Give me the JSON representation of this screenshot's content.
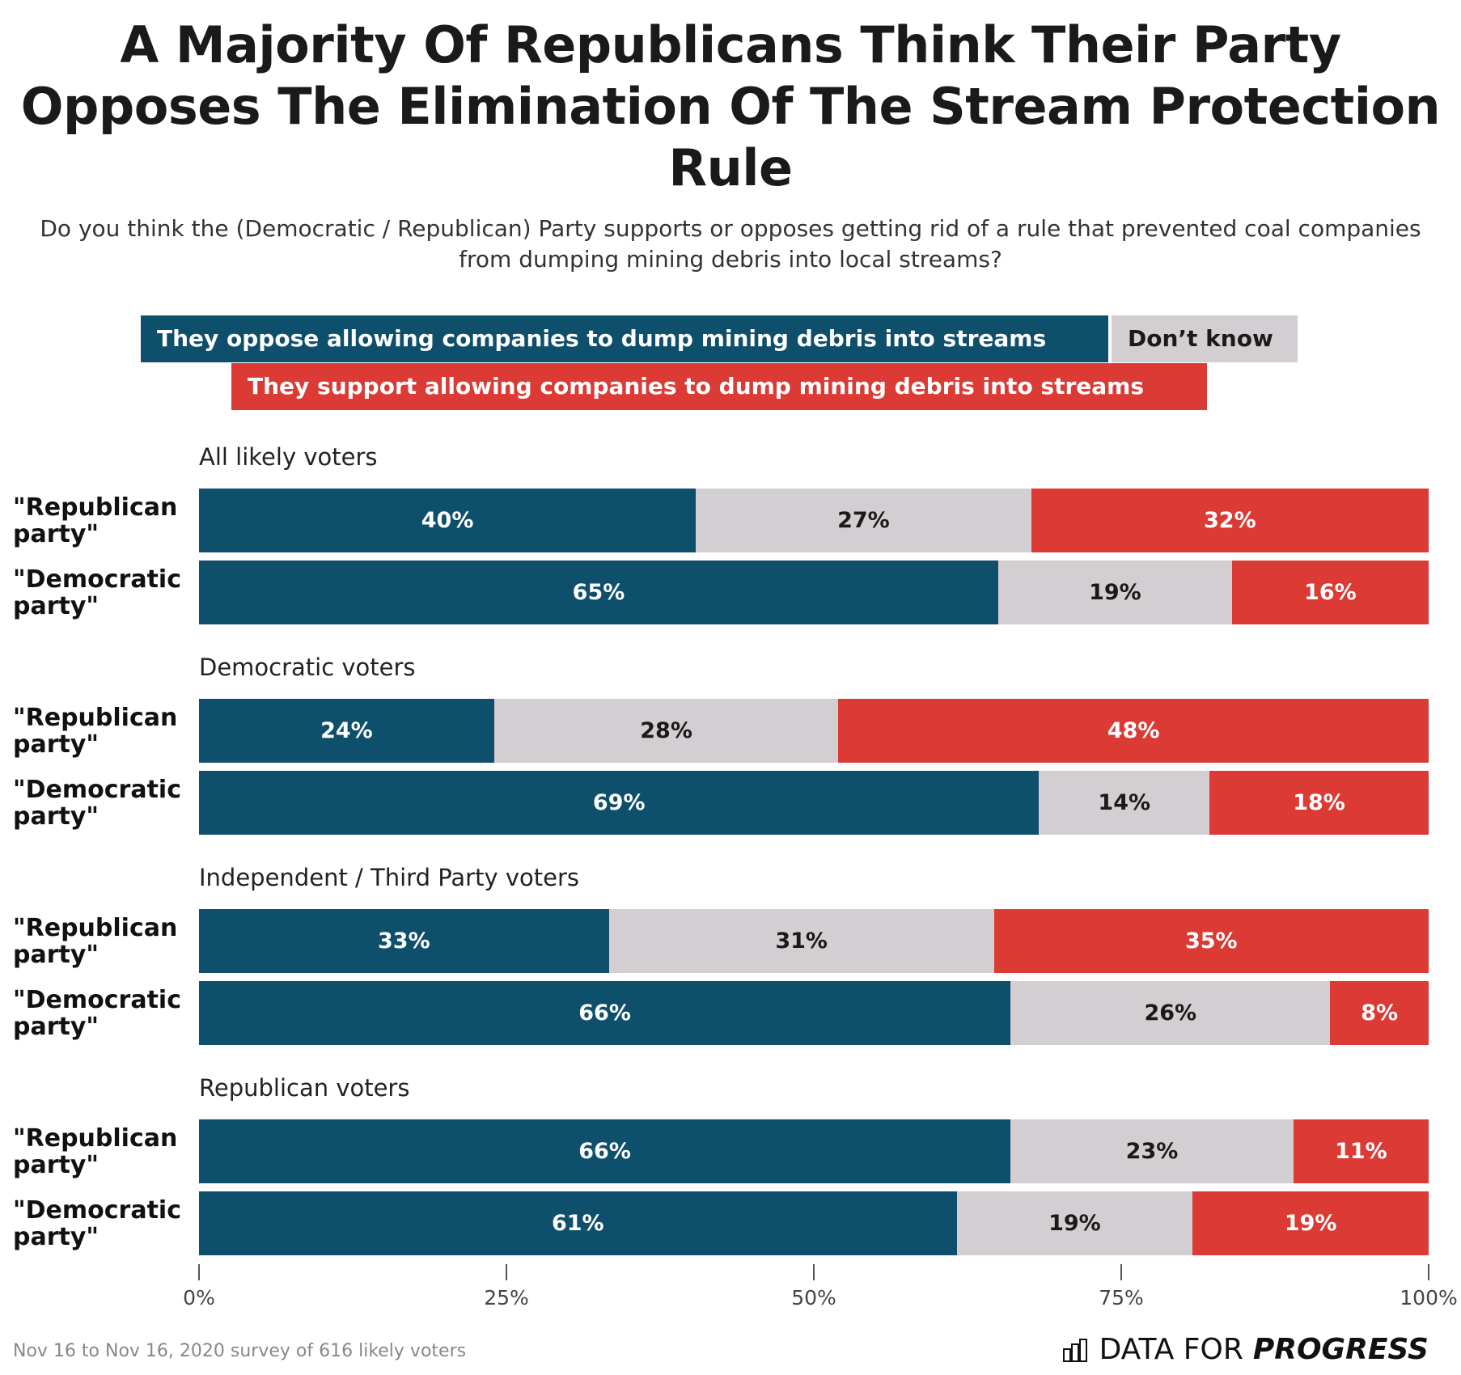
{
  "chart_data": {
    "type": "bar",
    "orientation": "horizontal-stacked",
    "title": "A Majority Of Republicans Think Their Party Opposes The Elimination Of The Stream Protection Rule",
    "subtitle": "Do you think the (Democratic / Republican) Party supports or opposes getting rid of a rule that prevented coal companies from dumping mining debris into local streams?",
    "legend": [
      {
        "name": "They oppose allowing companies to dump mining debris into streams",
        "color": "#0e4f6b",
        "text_color": "#ffffff"
      },
      {
        "name": "Don’t know",
        "color": "#d3ced2",
        "text_color": "#1a1a1a"
      },
      {
        "name": "They support allowing companies to dump mining debris into streams",
        "color": "#dc3a35",
        "text_color": "#ffffff"
      }
    ],
    "groups": [
      {
        "label": "All likely voters",
        "rows": [
          {
            "label": "\"Republican party\"",
            "values": [
              40,
              27,
              32
            ],
            "labels": [
              "40%",
              "27%",
              "32%"
            ]
          },
          {
            "label": "\"Democratic party\"",
            "values": [
              65,
              19,
              16
            ],
            "labels": [
              "65%",
              "19%",
              "16%"
            ]
          }
        ]
      },
      {
        "label": "Democratic voters",
        "rows": [
          {
            "label": "\"Republican party\"",
            "values": [
              24,
              28,
              48
            ],
            "labels": [
              "24%",
              "28%",
              "48%"
            ]
          },
          {
            "label": "\"Democratic party\"",
            "values": [
              69,
              14,
              18
            ],
            "labels": [
              "69%",
              "14%",
              "18%"
            ]
          }
        ]
      },
      {
        "label": "Independent / Third Party voters",
        "rows": [
          {
            "label": "\"Republican party\"",
            "values": [
              33,
              31,
              35
            ],
            "labels": [
              "33%",
              "31%",
              "35%"
            ]
          },
          {
            "label": "\"Democratic party\"",
            "values": [
              66,
              26,
              8
            ],
            "labels": [
              "66%",
              "26%",
              "8%"
            ]
          }
        ]
      },
      {
        "label": "Republican voters",
        "rows": [
          {
            "label": "\"Republican party\"",
            "values": [
              66,
              23,
              11
            ],
            "labels": [
              "66%",
              "23%",
              "11%"
            ]
          },
          {
            "label": "\"Democratic party\"",
            "values": [
              61,
              19,
              19
            ],
            "labels": [
              "61%",
              "19%",
              "19%"
            ]
          }
        ]
      }
    ],
    "xlim": [
      0,
      100
    ],
    "xticks": [
      0,
      25,
      50,
      75,
      100
    ],
    "xtick_labels": [
      "0%",
      "25%",
      "50%",
      "75%",
      "100%"
    ],
    "grid": false
  },
  "footer": {
    "source": "Nov 16 to Nov 16, 2020 survey of 616 likely voters",
    "logo_light": "DATA FOR",
    "logo_bold": "PROGRESS"
  }
}
